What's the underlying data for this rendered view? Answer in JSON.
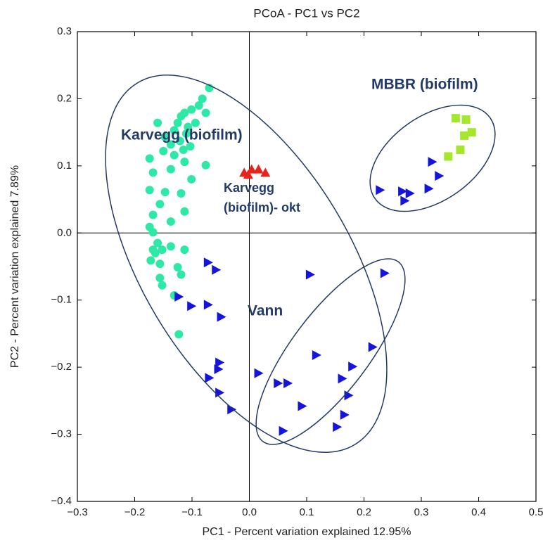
{
  "chart_data": {
    "type": "scatter",
    "title": "PCoA - PC1 vs PC2",
    "xlabel": "PC1 - Percent variation explained 12.95%",
    "ylabel": "PC2 - Percent variation explained 7.89%",
    "annotations": [
      "Karvegg (biofilm)",
      "Karvegg",
      "(biofilm)- okt",
      "Vann",
      "MBBR (biofilm)"
    ],
    "xlim": [
      -0.3,
      0.5
    ],
    "ylim": [
      -0.4,
      0.3
    ],
    "xticks": [
      {
        "value": -0.3,
        "label": "−0.3"
      },
      {
        "value": -0.2,
        "label": "−0.2"
      },
      {
        "value": -0.1,
        "label": "−0.1"
      },
      {
        "value": 0,
        "label": "0.0"
      },
      0.1,
      0.2,
      0.3,
      0.4,
      0.5
    ],
    "yticks": [
      {
        "value": -0.4,
        "label": "−0.4"
      },
      {
        "value": -0.3,
        "label": "−0.3"
      },
      {
        "value": -0.2,
        "label": "−0.2"
      },
      {
        "value": -0.1,
        "label": "−0.1"
      },
      {
        "value": 0,
        "label": "0.0"
      },
      0.1,
      0.2,
      0.3
    ],
    "zero_lines": true,
    "series": [
      {
        "marker": "circle",
        "color": "#2ee8a6",
        "x": [
          -0.07,
          -0.082,
          -0.076,
          -0.088,
          -0.101,
          -0.113,
          -0.119,
          -0.125,
          -0.107,
          -0.094,
          -0.11,
          -0.131,
          -0.121,
          -0.137,
          -0.115,
          -0.103,
          -0.16,
          -0.147,
          -0.15,
          -0.131,
          -0.113,
          -0.076,
          -0.174,
          -0.168,
          -0.137,
          -0.101,
          -0.174,
          -0.147,
          -0.119,
          -0.156,
          -0.113,
          -0.168,
          -0.137,
          -0.174,
          -0.168,
          -0.16,
          -0.168,
          -0.152,
          -0.164,
          -0.137,
          -0.113,
          -0.172,
          -0.156,
          -0.125,
          -0.119,
          -0.156,
          -0.152,
          -0.131,
          -0.123
        ],
        "y": [
          0.216,
          0.2,
          0.179,
          0.19,
          0.184,
          0.179,
          0.174,
          0.164,
          0.158,
          0.164,
          0.148,
          0.153,
          0.137,
          0.132,
          0.124,
          0.129,
          0.164,
          0.143,
          0.122,
          0.116,
          0.106,
          0.101,
          0.111,
          0.09,
          0.095,
          0.08,
          0.064,
          0.061,
          0.059,
          0.043,
          0.032,
          0.027,
          0.017,
          0.009,
          0.001,
          -0.015,
          -0.025,
          -0.025,
          -0.03,
          -0.02,
          -0.025,
          -0.041,
          -0.046,
          -0.051,
          -0.062,
          -0.067,
          -0.078,
          -0.093,
          -0.151
        ]
      },
      {
        "marker": "triangle-up",
        "color": "#e8231c",
        "x": [
          -0.009,
          0.004,
          0.016,
          0.028,
          -0.002
        ],
        "y": [
          0.09,
          0.095,
          0.095,
          0.09,
          0.087
        ]
      },
      {
        "marker": "triangle-right",
        "color": "#1414dc",
        "x": [
          -0.072,
          -0.058,
          -0.123,
          -0.101,
          -0.072,
          -0.049,
          -0.052,
          -0.054,
          -0.07,
          -0.052,
          -0.031,
          0.016,
          0.05,
          0.067,
          0.059,
          0.092,
          0.106,
          0.117,
          0.236,
          0.215,
          0.18,
          0.162,
          0.173,
          0.166,
          0.153,
          0.228,
          0.267,
          0.28,
          0.271,
          0.313,
          0.319,
          0.331
        ],
        "y": [
          -0.044,
          -0.055,
          -0.095,
          -0.109,
          -0.107,
          -0.125,
          -0.193,
          -0.203,
          -0.216,
          -0.238,
          -0.263,
          -0.209,
          -0.224,
          -0.224,
          -0.295,
          -0.258,
          -0.062,
          -0.182,
          -0.06,
          -0.17,
          -0.199,
          -0.217,
          -0.242,
          -0.271,
          -0.289,
          0.064,
          0.062,
          0.059,
          0.048,
          0.066,
          0.106,
          0.085
        ]
      },
      {
        "marker": "square",
        "color": "#a6e62c",
        "x": [
          0.36,
          0.378,
          0.388,
          0.375,
          0.368,
          0.347
        ],
        "y": [
          0.171,
          0.169,
          0.15,
          0.145,
          0.124,
          0.114
        ]
      }
    ]
  }
}
